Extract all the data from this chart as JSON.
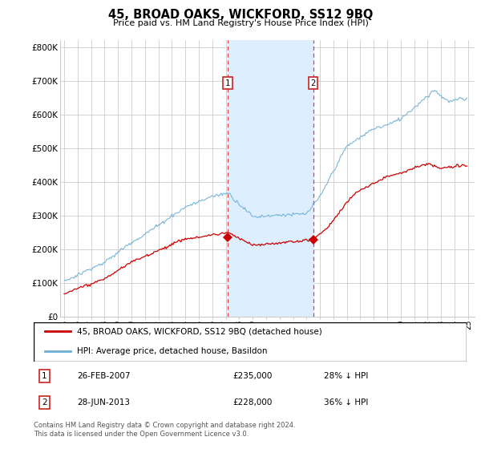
{
  "title": "45, BROAD OAKS, WICKFORD, SS12 9BQ",
  "subtitle": "Price paid vs. HM Land Registry's House Price Index (HPI)",
  "ylabel_ticks": [
    "£0",
    "£100K",
    "£200K",
    "£300K",
    "£400K",
    "£500K",
    "£600K",
    "£700K",
    "£800K"
  ],
  "ytick_values": [
    0,
    100000,
    200000,
    300000,
    400000,
    500000,
    600000,
    700000,
    800000
  ],
  "ylim": [
    0,
    820000
  ],
  "xlim_start": 1994.7,
  "xlim_end": 2025.5,
  "sale1_year": 2007.15,
  "sale1_price": 235000,
  "sale1_label": "1",
  "sale2_year": 2013.5,
  "sale2_price": 228000,
  "sale2_label": "2",
  "legend_line1": "45, BROAD OAKS, WICKFORD, SS12 9BQ (detached house)",
  "legend_line2": "HPI: Average price, detached house, Basildon",
  "footnote": "Contains HM Land Registry data © Crown copyright and database right 2024.\nThis data is licensed under the Open Government Licence v3.0.",
  "red_color": "#cc0000",
  "blue_color": "#6baed6",
  "shade_color": "#ddeeff",
  "marker_box_color": "#cc2222",
  "grid_color": "#cccccc"
}
